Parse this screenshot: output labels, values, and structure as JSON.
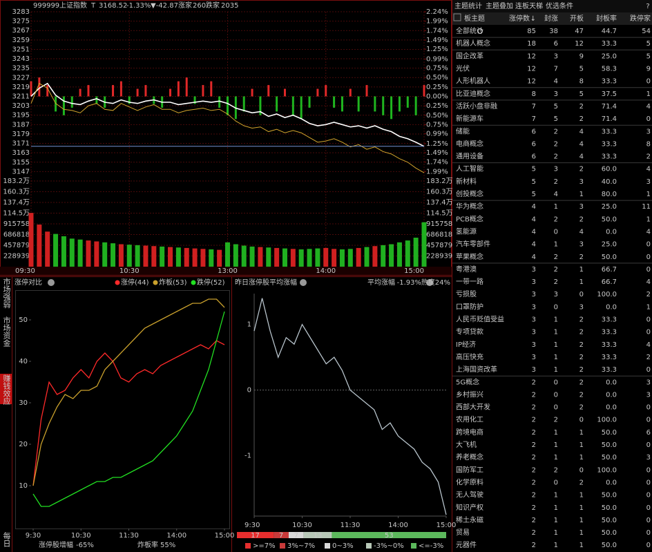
{
  "index_chart": {
    "type": "line",
    "header": {
      "code": "999999",
      "name": "上证指数",
      "flag": "T",
      "price": "3168.52",
      "change_pct": "-1.33%",
      "change": "▼-42.87",
      "up_label": "涨家",
      "up_count": "260",
      "down_label": "跌家",
      "down_count": "2035"
    },
    "x": [
      0,
      5,
      10,
      15,
      20,
      25,
      30,
      35,
      40,
      45,
      50,
      55,
      60,
      65,
      70,
      75,
      80,
      85,
      90,
      95,
      100,
      105,
      110,
      115,
      120,
      125,
      130,
      135,
      140,
      145,
      150,
      155,
      160,
      165,
      170,
      175,
      180,
      185,
      190,
      195,
      200,
      205,
      210,
      215,
      220,
      225,
      230,
      235,
      240
    ],
    "xlim": [
      0,
      240
    ],
    "xticks": [
      {
        "value": 0,
        "label": "09:30"
      },
      {
        "value": 60,
        "label": "10:30"
      },
      {
        "value": 120,
        "label": "13:00"
      },
      {
        "value": 180,
        "label": "14:00"
      },
      {
        "value": 240,
        "label": "15:00"
      }
    ],
    "ylim": [
      3139,
      3283
    ],
    "yticks": [
      3283,
      3275,
      3267,
      3259,
      3251,
      3243,
      3235,
      3227,
      3219,
      3211,
      3203,
      3195,
      3187,
      3179,
      3171,
      3163,
      3155,
      3147
    ],
    "y2lim": [
      -2.24,
      2.24
    ],
    "y2ticks": [
      {
        "value": 2.24,
        "label": "2.24%"
      },
      {
        "value": 1.99,
        "label": "1.99%"
      },
      {
        "value": 1.74,
        "label": "1.74%"
      },
      {
        "value": 1.49,
        "label": "1.49%"
      },
      {
        "value": 1.25,
        "label": "1.25%"
      },
      {
        "value": 0.99,
        "label": "0.99%"
      },
      {
        "value": 0.75,
        "label": "0.75%"
      },
      {
        "value": 0.5,
        "label": "0.50%"
      },
      {
        "value": 0.25,
        "label": "0.25%"
      },
      {
        "value": 0,
        "label": "0.00%"
      },
      {
        "value": -0.25,
        "label": "0.25%"
      },
      {
        "value": -0.5,
        "label": "0.50%"
      },
      {
        "value": -0.75,
        "label": "0.75%"
      },
      {
        "value": -0.99,
        "label": "0.99%"
      },
      {
        "value": -1.25,
        "label": "1.25%"
      },
      {
        "value": -1.49,
        "label": "1.49%"
      },
      {
        "value": -1.74,
        "label": "1.74%"
      },
      {
        "value": -1.99,
        "label": "1.99%"
      }
    ],
    "series": [
      {
        "color": "#ffffff",
        "values": [
          3211,
          3218,
          3222,
          3212,
          3207,
          3205,
          3204,
          3207,
          3209,
          3206,
          3205,
          3208,
          3206,
          3205,
          3207,
          3208,
          3206,
          3206,
          3204,
          3205,
          3206,
          3207,
          3206,
          3207,
          3205,
          3201,
          3199,
          3197,
          3198,
          3194,
          3196,
          3193,
          3195,
          3192,
          3188,
          3186,
          3187,
          3189,
          3187,
          3185,
          3186,
          3184,
          3186,
          3183,
          3181,
          3177,
          3175,
          3172,
          3168.52
        ]
      },
      {
        "color": "#d4a52c",
        "values": [
          3205,
          3222,
          3218,
          3205,
          3200,
          3199,
          3197,
          3203,
          3205,
          3200,
          3199,
          3205,
          3202,
          3199,
          3202,
          3204,
          3200,
          3200,
          3197,
          3199,
          3200,
          3201,
          3199,
          3200,
          3196,
          3190,
          3186,
          3184,
          3185,
          3181,
          3183,
          3180,
          3182,
          3180,
          3176,
          3172,
          3173,
          3175,
          3172,
          3168,
          3170,
          3166,
          3168,
          3164,
          3162,
          3158,
          3155,
          3150,
          3146
        ]
      },
      {
        "type": "bar",
        "axis": "y2",
        "up_color": "#e02828",
        "down_color": "#1fb51f",
        "values": [
          0.4,
          0.5,
          0.3,
          -0.4,
          -0.5,
          -0.3,
          0.2,
          0.3,
          -0.2,
          -0.3,
          0.3,
          0.4,
          -0.2,
          0.2,
          0.3,
          -0.2,
          -0.3,
          0.2,
          0.4,
          0.5,
          -0.2,
          0.3,
          0.4,
          -0.3,
          -0.5,
          -0.6,
          -0.4,
          0.2,
          -0.5,
          0.3,
          -0.4,
          0.2,
          -0.5,
          -0.6,
          -0.3,
          0.2,
          0.3,
          -0.3,
          -0.4,
          0.2,
          -0.4,
          0.3,
          -0.4,
          -0.5,
          -0.6,
          -0.4,
          -0.3,
          -0.5,
          0.3
        ]
      }
    ],
    "volume": {
      "ylim": [
        0,
        1831515
      ],
      "yticks": [
        {
          "value": 1831515,
          "label": "183.2万"
        },
        {
          "value": 1602576,
          "label": "160.3万"
        },
        {
          "value": 1373637,
          "label": "137.4万"
        },
        {
          "value": 1144697,
          "label": "114.5万"
        },
        915758,
        686818,
        457879,
        228939
      ],
      "values": [
        1150000,
        900000,
        750000,
        700000,
        650000,
        600000,
        580000,
        560000,
        540000,
        520000,
        500000,
        480000,
        470000,
        460000,
        450000,
        440000,
        430000,
        420000,
        410000,
        400000,
        390000,
        380000,
        370000,
        360000,
        520000,
        480000,
        450000,
        430000,
        420000,
        410000,
        400000,
        390000,
        380000,
        370000,
        380000,
        390000,
        400000,
        380000,
        370000,
        380000,
        400000,
        420000,
        440000,
        460000,
        480000,
        520000,
        560000,
        620000,
        950000
      ]
    }
  },
  "side_tabs": [
    "市场强弱",
    "市场资金",
    "赚钱效应",
    "每日"
  ],
  "limit_chart": {
    "type": "line",
    "title": "涨停对比",
    "x": [
      0,
      10,
      20,
      30,
      40,
      50,
      60,
      70,
      80,
      90,
      100,
      110,
      120,
      130,
      140,
      150,
      160,
      170,
      180,
      190,
      200,
      210,
      220,
      230,
      240
    ],
    "xlim": [
      0,
      240
    ],
    "xticks": [
      {
        "value": 0,
        "label": "9:30"
      },
      {
        "value": 60,
        "label": "10:30"
      },
      {
        "value": 120,
        "label": "11:30"
      },
      {
        "value": 180,
        "label": "14:00"
      },
      {
        "value": 240,
        "label": "15:00"
      }
    ],
    "ylim": [
      0,
      57
    ],
    "yticks": [
      10,
      20,
      30,
      40,
      50
    ],
    "series": [
      {
        "name": "涨停(44)",
        "color": "#ff2a2a",
        "values": [
          10,
          26,
          35,
          32,
          33,
          36,
          38,
          36,
          40,
          42,
          40,
          36,
          35,
          37,
          38,
          37,
          39,
          40,
          41,
          42,
          43,
          44,
          43,
          45,
          44
        ]
      },
      {
        "name": "炸板(53)",
        "color": "#c9a02c",
        "values": [
          10,
          20,
          25,
          29,
          32,
          31,
          33,
          33,
          34,
          38,
          40,
          42,
          44,
          46,
          48,
          49,
          50,
          51,
          52,
          53,
          54,
          54,
          55,
          55,
          53
        ]
      },
      {
        "name": "跌停(52)",
        "color": "#22e022",
        "values": [
          8,
          5,
          5,
          6,
          7,
          8,
          9,
          10,
          11,
          11,
          12,
          12,
          13,
          14,
          15,
          16,
          18,
          20,
          22,
          25,
          28,
          33,
          38,
          45,
          52
        ]
      }
    ],
    "footer": {
      "growth_label": "涨停股增幅",
      "growth_value": "-65%",
      "burst_label": "炸板率",
      "burst_value": "55%"
    }
  },
  "avg_chart": {
    "type": "line",
    "title": "昨日涨停股平均涨幅",
    "avg_label": "平均涨幅",
    "avg_value": "-1.93%",
    "heat": "热度24%",
    "x": [
      0,
      10,
      20,
      30,
      40,
      50,
      60,
      70,
      80,
      90,
      100,
      110,
      120,
      130,
      140,
      150,
      160,
      170,
      180,
      190,
      200,
      210,
      220,
      230,
      240
    ],
    "xlim": [
      0,
      240
    ],
    "xticks": [
      {
        "value": 0,
        "label": "9:30"
      },
      {
        "value": 60,
        "label": "10:30"
      },
      {
        "value": 120,
        "label": "11:30"
      },
      {
        "value": 180,
        "label": "14:00"
      },
      {
        "value": 240,
        "label": "15:00"
      }
    ],
    "ylim": [
      -1.92,
      1.47
    ],
    "yticks": [
      1,
      0,
      -1
    ],
    "color": "#b8c4cc",
    "values": [
      0.9,
      1.4,
      0.9,
      0.5,
      0.8,
      0.7,
      1.0,
      0.8,
      0.6,
      0.4,
      0.5,
      0.3,
      0.0,
      -0.1,
      -0.2,
      -0.3,
      -0.6,
      -0.5,
      -0.7,
      -0.8,
      -0.9,
      -1.1,
      -1.2,
      -1.4,
      -1.9
    ],
    "distribution": {
      "type": "bar",
      "categories": [
        ">=7%",
        "3%~7%",
        "0~3%",
        "-3%~0%",
        "<=-3%"
      ],
      "values": [
        17,
        7,
        7,
        13,
        53
      ],
      "colors": [
        "#e62e2e",
        "#c83a3a",
        "#d9d9d9",
        "#b8c8b8",
        "#5cb85c"
      ]
    }
  },
  "table": {
    "tabs": [
      "主题统计",
      "主题叠加",
      "连板天梯",
      "优选条件"
    ],
    "help": "?",
    "columns": [
      "板主题",
      "涨停数",
      "封涨",
      "开板",
      "封板率",
      "跌停家"
    ],
    "sort_indicator": "↓",
    "rows": [
      [
        "全部统计",
        85,
        38,
        47,
        "44.7",
        54
      ],
      [
        "机器人概念",
        18,
        6,
        12,
        "33.3",
        5
      ],
      [
        "国企改革",
        12,
        3,
        9,
        "25.0",
        5
      ],
      [
        "光伏",
        12,
        7,
        5,
        "58.3",
        9
      ],
      [
        "人形机器人",
        12,
        4,
        8,
        "33.3",
        0
      ],
      [
        "比亚迪概念",
        8,
        3,
        5,
        "37.5",
        1
      ],
      [
        "活跃小盘非融",
        7,
        5,
        2,
        "71.4",
        4
      ],
      [
        "新能源车",
        7,
        5,
        2,
        "71.4",
        0
      ],
      [
        "储能",
        6,
        2,
        4,
        "33.3",
        3
      ],
      [
        "电商概念",
        6,
        2,
        4,
        "33.3",
        8
      ],
      [
        "通用设备",
        6,
        2,
        4,
        "33.3",
        2
      ],
      [
        "人工智能",
        5,
        3,
        2,
        "60.0",
        4
      ],
      [
        "新材料",
        5,
        2,
        3,
        "40.0",
        3
      ],
      [
        "创投概念",
        5,
        4,
        1,
        "80.0",
        1
      ],
      [
        "华为概念",
        4,
        1,
        3,
        "25.0",
        11
      ],
      [
        "PCB概念",
        4,
        2,
        2,
        "50.0",
        1
      ],
      [
        "氢能源",
        4,
        0,
        4,
        "0.0",
        4
      ],
      [
        "汽车零部件",
        4,
        1,
        3,
        "25.0",
        0
      ],
      [
        "苹果概念",
        4,
        2,
        2,
        "50.0",
        0
      ],
      [
        "粤港澳",
        3,
        2,
        1,
        "66.7",
        0
      ],
      [
        "一带一路",
        3,
        2,
        1,
        "66.7",
        4
      ],
      [
        "亏损股",
        3,
        3,
        0,
        "100.0",
        2
      ],
      [
        "口罩防护",
        3,
        0,
        3,
        "0.0",
        1
      ],
      [
        "人民币贬值受益",
        3,
        1,
        2,
        "33.3",
        0
      ],
      [
        "专项贷款",
        3,
        1,
        2,
        "33.3",
        0
      ],
      [
        "IP经济",
        3,
        1,
        2,
        "33.3",
        4
      ],
      [
        "高压快充",
        3,
        1,
        2,
        "33.3",
        2
      ],
      [
        "上海国资改革",
        3,
        1,
        2,
        "33.3",
        0
      ],
      [
        "5G概念",
        2,
        0,
        2,
        "0.0",
        3
      ],
      [
        "乡村振兴",
        2,
        0,
        2,
        "0.0",
        3
      ],
      [
        "西部大开发",
        2,
        0,
        2,
        "0.0",
        0
      ],
      [
        "农用化工",
        2,
        2,
        0,
        "100.0",
        0
      ],
      [
        "跨境电商",
        2,
        1,
        1,
        "50.0",
        6
      ],
      [
        "大飞机",
        2,
        1,
        1,
        "50.0",
        0
      ],
      [
        "养老概念",
        2,
        1,
        1,
        "50.0",
        3
      ],
      [
        "国防军工",
        2,
        2,
        0,
        "100.0",
        0
      ],
      [
        "化学原料",
        2,
        0,
        2,
        "0.0",
        0
      ],
      [
        "无人驾驶",
        2,
        1,
        1,
        "50.0",
        0
      ],
      [
        "知识产权",
        2,
        1,
        1,
        "50.0",
        0
      ],
      [
        "稀土永磁",
        2,
        1,
        1,
        "50.0",
        0
      ],
      [
        "贸易",
        2,
        1,
        1,
        "50.0",
        0
      ],
      [
        "元器件",
        2,
        1,
        1,
        "50.0",
        0
      ]
    ]
  }
}
